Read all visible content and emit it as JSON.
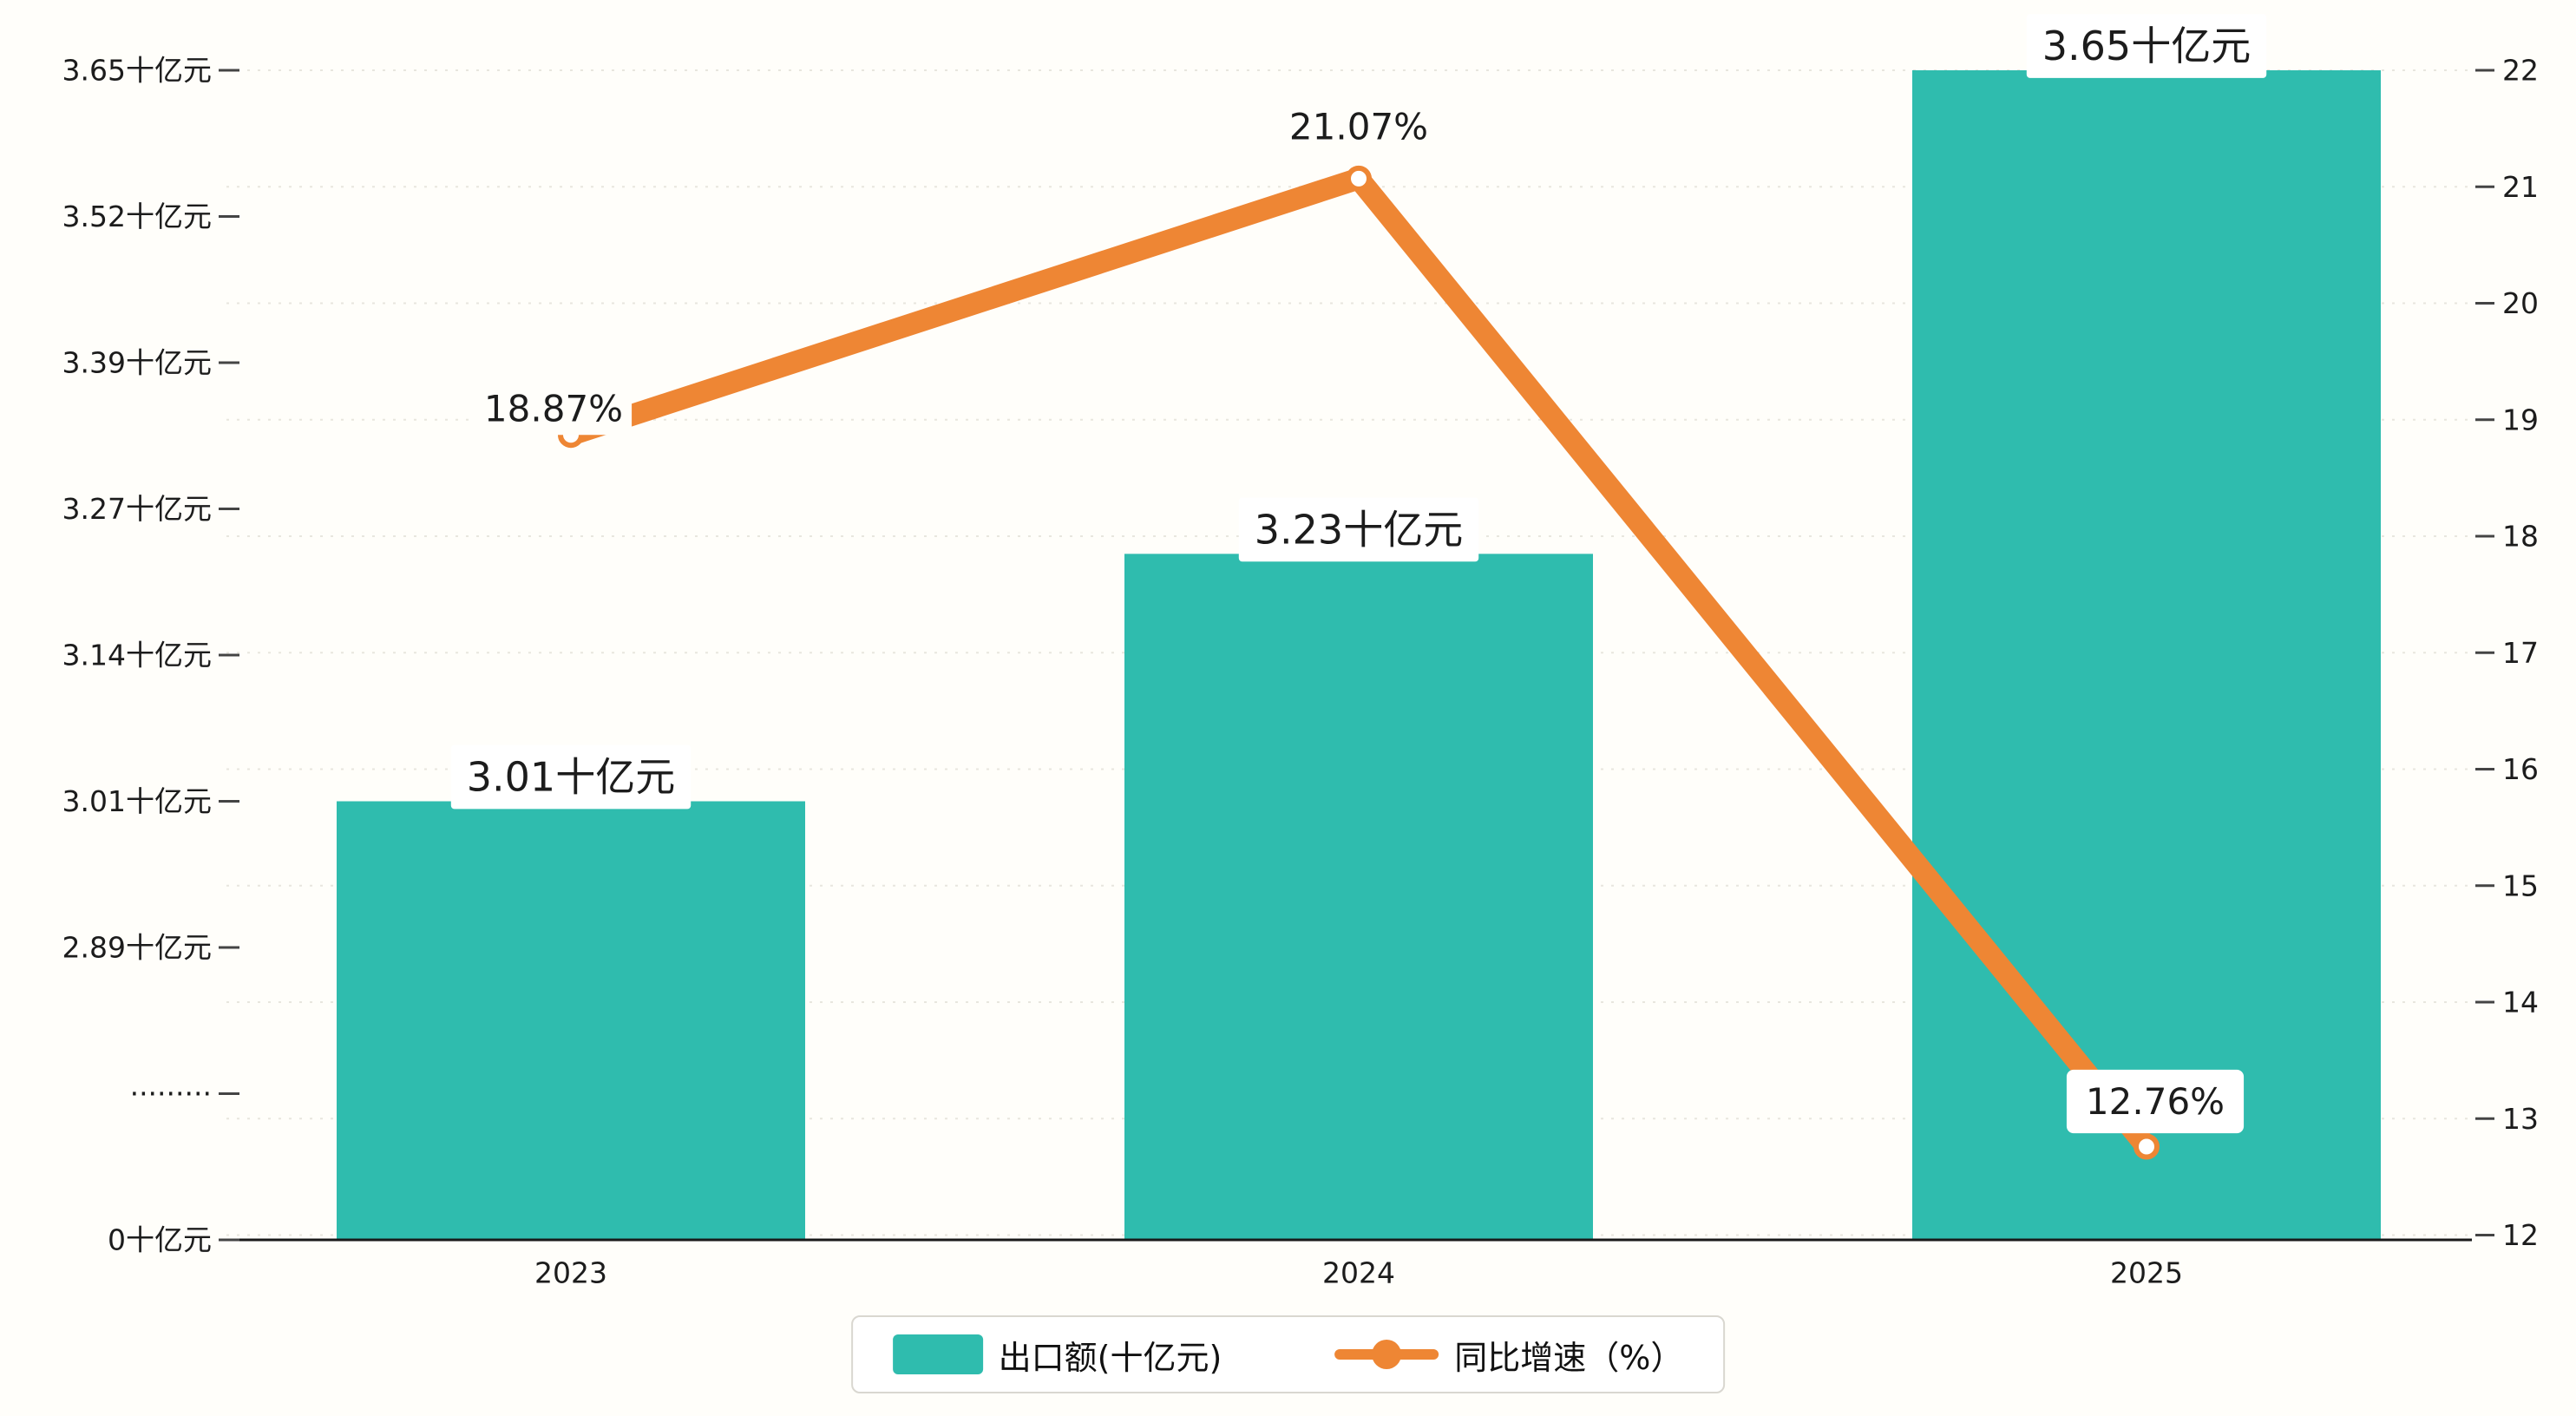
{
  "chart_data": {
    "type": "bar",
    "title": "",
    "categories": [
      "2023",
      "2024",
      "2025"
    ],
    "series": [
      {
        "name": "出口额(十亿元)",
        "type": "bar",
        "axis": "left",
        "color": "#2fbcae",
        "values": [
          3.01,
          3.23,
          3.65
        ],
        "data_labels": [
          "3.01十亿元",
          "3.23十亿元",
          "3.65十亿元"
        ]
      },
      {
        "name": "同比增速（%）",
        "type": "line",
        "axis": "right",
        "color": "#ee8634",
        "values": [
          18.87,
          21.07,
          12.76
        ],
        "data_labels": [
          "18.87%",
          "21.07%",
          "12.76%"
        ]
      }
    ],
    "left_axis": {
      "tick_labels": [
        "3.65十亿元",
        "3.52十亿元",
        "3.39十亿元",
        "3.27十亿元",
        "3.14十亿元",
        "3.01十亿元",
        "2.89十亿元",
        "·········",
        "0十亿元"
      ],
      "tick_values": [
        3.65,
        3.52,
        3.39,
        3.27,
        3.14,
        3.01,
        2.89,
        null,
        0
      ],
      "has_break": true
    },
    "right_axis": {
      "tick_labels": [
        "22",
        "21",
        "20",
        "19",
        "18",
        "17",
        "16",
        "15",
        "14",
        "13",
        "12"
      ],
      "max": 22,
      "min": 12
    },
    "legend": {
      "position": "bottom",
      "items": [
        "出口额(十亿元)",
        "同比增速（%）"
      ]
    },
    "grid": true,
    "background": "#fffefa",
    "axis_line_color": "#1a1a1a",
    "text_color": "#1c1c1c"
  }
}
